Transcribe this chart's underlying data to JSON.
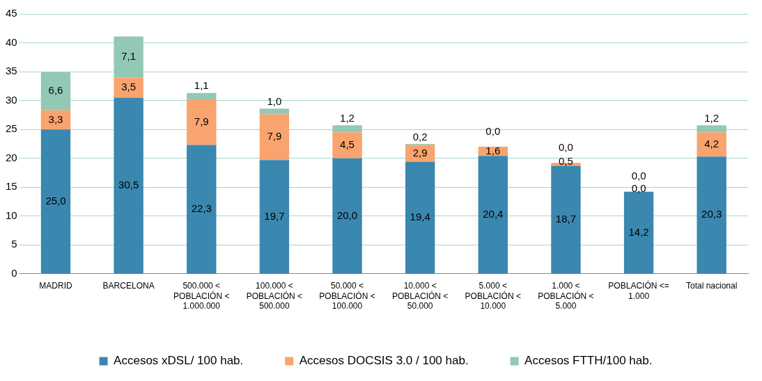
{
  "chart_data": {
    "type": "bar",
    "stacked": true,
    "categories": [
      "MADRID",
      "BARCELONA",
      "500.000 < POBLACIÓN < 1.000.000",
      "100.000 < POBLACIÓN < 500.000",
      "50.000 < POBLACIÓN < 100.000",
      "10.000 < POBLACIÓN < 50.000",
      "5.000 < POBLACIÓN < 10.000",
      "1.000 < POBLACIÓN < 5.000",
      "POBLACIÓN <= 1.000",
      "Total nacional"
    ],
    "series": [
      {
        "name": "Accesos xDSL/ 100 hab.",
        "color": "#3a87b0",
        "values": [
          25.0,
          30.5,
          22.3,
          19.7,
          20.0,
          19.4,
          20.4,
          18.7,
          14.2,
          20.3
        ],
        "value_labels": [
          "25,0",
          "30,5",
          "22,3",
          "19,7",
          "20,0",
          "19,4",
          "20,4",
          "18,7",
          "14,2",
          "20,3"
        ]
      },
      {
        "name": "Accesos DOCSIS 3.0 / 100 hab.",
        "color": "#f9a36e",
        "values": [
          3.3,
          3.5,
          7.9,
          7.9,
          4.5,
          2.9,
          1.6,
          0.5,
          0.0,
          4.2
        ],
        "value_labels": [
          "3,3",
          "3,5",
          "7,9",
          "7,9",
          "4,5",
          "2,9",
          "1,6",
          "0,5",
          "0,0",
          "4,2"
        ]
      },
      {
        "name": "Accesos FTTH/100 hab.",
        "color": "#93c8b4",
        "values": [
          6.6,
          7.1,
          1.1,
          1.0,
          1.2,
          0.2,
          0.0,
          0.0,
          0.0,
          1.2
        ],
        "value_labels": [
          "6,6",
          "7,1",
          "1,1",
          "1,0",
          "1,2",
          "0,2",
          "0,0",
          "0,0",
          "0,0",
          "1,2"
        ]
      }
    ],
    "ylim": [
      0,
      45
    ],
    "yticks": [
      0,
      5,
      10,
      15,
      20,
      25,
      30,
      35,
      40,
      45
    ],
    "grid": "y",
    "legend": "bottom"
  }
}
